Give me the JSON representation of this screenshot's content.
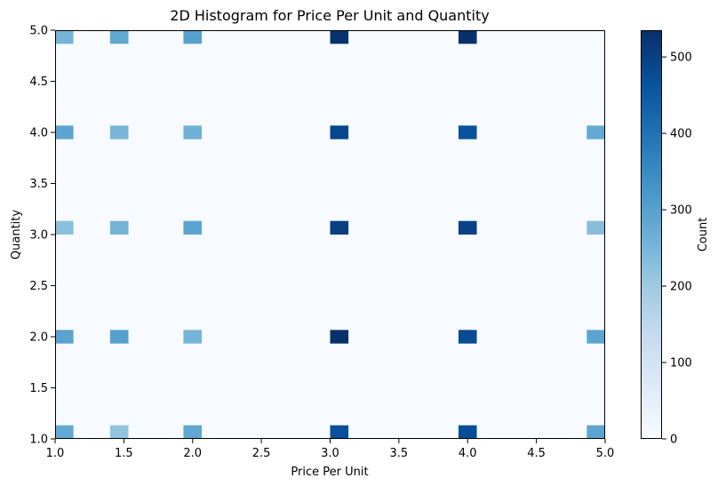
{
  "chart_data": {
    "type": "heatmap",
    "title": "2D Histogram for Price Per Unit and Quantity",
    "xlabel": "Price Per Unit",
    "ylabel": "Quantity",
    "xlim": [
      1.0,
      5.0
    ],
    "ylim": [
      1.0,
      5.0
    ],
    "x_ticks": [
      "1.0",
      "1.5",
      "2.0",
      "2.5",
      "3.0",
      "3.5",
      "4.0",
      "4.5",
      "5.0"
    ],
    "y_ticks": [
      "1.0",
      "1.5",
      "2.0",
      "2.5",
      "3.0",
      "3.5",
      "4.0",
      "4.5",
      "5.0"
    ],
    "colormap": "Blues",
    "colorbar": {
      "label": "Count",
      "min": 0,
      "max": 535,
      "ticks": [
        "0",
        "100",
        "200",
        "300",
        "400",
        "500"
      ]
    },
    "grid": false,
    "bins": {
      "x": 30,
      "y": 30
    },
    "cells": [
      {
        "x": 1.0,
        "y": 1.0,
        "count": 280
      },
      {
        "x": 1.5,
        "y": 1.0,
        "count": 215
      },
      {
        "x": 2.0,
        "y": 1.0,
        "count": 285
      },
      {
        "x": 3.0,
        "y": 1.0,
        "count": 470
      },
      {
        "x": 4.0,
        "y": 1.0,
        "count": 475
      },
      {
        "x": 5.0,
        "y": 1.0,
        "count": 290
      },
      {
        "x": 1.0,
        "y": 2.0,
        "count": 295
      },
      {
        "x": 1.5,
        "y": 2.0,
        "count": 300
      },
      {
        "x": 2.0,
        "y": 2.0,
        "count": 255
      },
      {
        "x": 3.0,
        "y": 2.0,
        "count": 535
      },
      {
        "x": 4.0,
        "y": 2.0,
        "count": 480
      },
      {
        "x": 5.0,
        "y": 2.0,
        "count": 290
      },
      {
        "x": 1.0,
        "y": 3.0,
        "count": 225
      },
      {
        "x": 1.5,
        "y": 3.0,
        "count": 255
      },
      {
        "x": 2.0,
        "y": 3.0,
        "count": 290
      },
      {
        "x": 3.0,
        "y": 3.0,
        "count": 505
      },
      {
        "x": 4.0,
        "y": 3.0,
        "count": 500
      },
      {
        "x": 5.0,
        "y": 3.0,
        "count": 230
      },
      {
        "x": 1.0,
        "y": 4.0,
        "count": 290
      },
      {
        "x": 1.5,
        "y": 4.0,
        "count": 250
      },
      {
        "x": 2.0,
        "y": 4.0,
        "count": 260
      },
      {
        "x": 3.0,
        "y": 4.0,
        "count": 490
      },
      {
        "x": 4.0,
        "y": 4.0,
        "count": 465
      },
      {
        "x": 5.0,
        "y": 4.0,
        "count": 280
      },
      {
        "x": 1.0,
        "y": 5.0,
        "count": 255
      },
      {
        "x": 1.5,
        "y": 5.0,
        "count": 285
      },
      {
        "x": 2.0,
        "y": 5.0,
        "count": 300
      },
      {
        "x": 3.0,
        "y": 5.0,
        "count": 530
      },
      {
        "x": 4.0,
        "y": 5.0,
        "count": 535
      }
    ]
  }
}
